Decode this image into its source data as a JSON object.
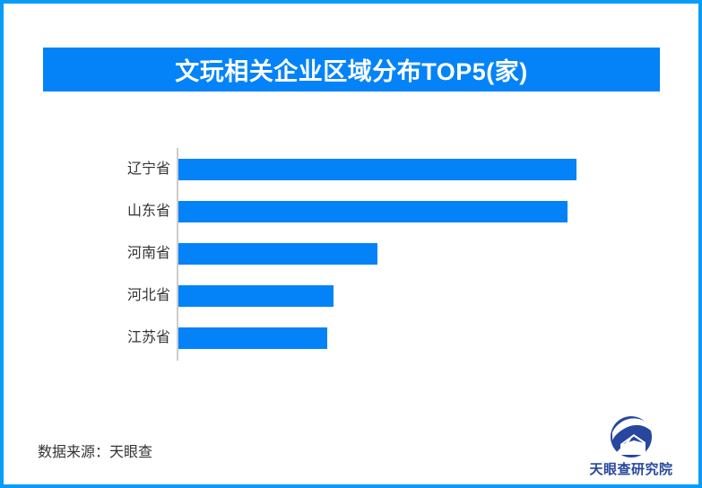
{
  "page": {
    "background": "#ffffff",
    "border_color": "#089cf7"
  },
  "header": {
    "title": "文玩相关企业区域分布TOP5(家)",
    "background": "#0483f8",
    "text_color": "#ffffff"
  },
  "chart_data": {
    "type": "bar",
    "orientation": "horizontal",
    "title": "文玩相关企业区域分布TOP5(家)",
    "categories": [
      "辽宁省",
      "山东省",
      "河南省",
      "河北省",
      "江苏省"
    ],
    "values": [
      100,
      97.7,
      50.0,
      39.0,
      37.4
    ],
    "unit": "relative bar length, % of longest bar (no numeric value labels shown in chart)",
    "value_labels_shown": false,
    "xlabel": "",
    "ylabel": "",
    "legend": "none",
    "grid": "off",
    "bar_color": "#0483f8",
    "axis_line_color": "#cccccc",
    "label_color": "#333333"
  },
  "footer": {
    "source": "数据来源：天眼查",
    "brand": "天眼查研究院",
    "brand_color": "#27479e"
  }
}
